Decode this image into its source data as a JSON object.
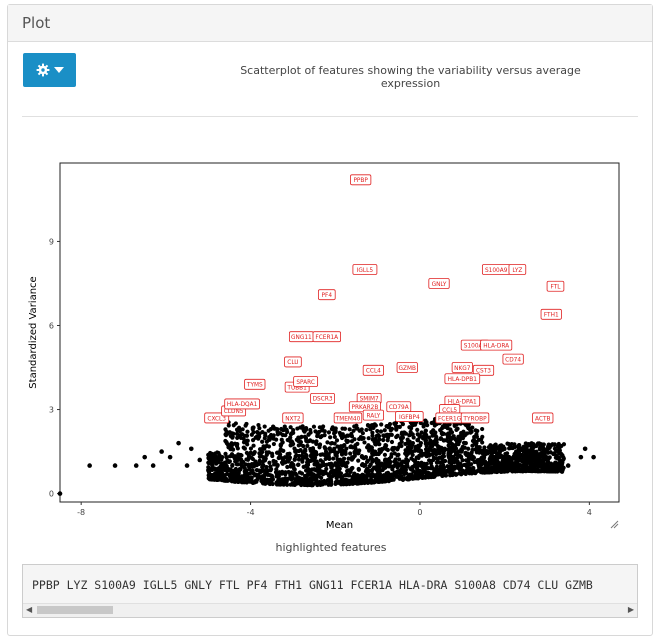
{
  "panel": {
    "title": "Plot"
  },
  "toolbar": {
    "settings_icon": "gear-icon",
    "dropdown_icon": "caret-down-icon",
    "accent": "#1a8fc6"
  },
  "caption": "Scatterplot of features showing the variability versus average expression",
  "chart_data": {
    "type": "scatter",
    "xlabel": "Mean",
    "ylabel": "Standardized Variance",
    "xlim": [
      -8.5,
      4.7
    ],
    "ylim": [
      -0.3,
      11.8
    ],
    "x_ticks": [
      "-8",
      "-4",
      "0",
      "4"
    ],
    "y_ticks": [
      "0",
      "3",
      "6",
      "9"
    ],
    "grid": false,
    "point_color": "#000000",
    "label_color": "#e02020",
    "labeled_points": [
      {
        "label": "PPBP",
        "x": -1.4,
        "y": 11.2
      },
      {
        "label": "IGLL5",
        "x": -1.3,
        "y": 8.0
      },
      {
        "label": "GNLY",
        "x": 0.45,
        "y": 7.5
      },
      {
        "label": "S100A9",
        "x": 1.8,
        "y": 8.0
      },
      {
        "label": "LYZ",
        "x": 2.3,
        "y": 8.0
      },
      {
        "label": "FTL",
        "x": 3.2,
        "y": 7.4
      },
      {
        "label": "PF4",
        "x": -2.2,
        "y": 7.1
      },
      {
        "label": "FTH1",
        "x": 3.1,
        "y": 6.4
      },
      {
        "label": "GNG11",
        "x": -2.8,
        "y": 5.6
      },
      {
        "label": "FCER1A",
        "x": -2.2,
        "y": 5.6
      },
      {
        "label": "S100A8",
        "x": 1.3,
        "y": 5.3
      },
      {
        "label": "HLA-DRA",
        "x": 1.8,
        "y": 5.3
      },
      {
        "label": "CD74",
        "x": 2.2,
        "y": 4.8
      },
      {
        "label": "CLU",
        "x": -3.0,
        "y": 4.7
      },
      {
        "label": "GZMB",
        "x": -0.3,
        "y": 4.5
      },
      {
        "label": "CCL4",
        "x": -1.1,
        "y": 4.4
      },
      {
        "label": "NKG7",
        "x": 1.0,
        "y": 4.5
      },
      {
        "label": "CST3",
        "x": 1.5,
        "y": 4.4
      },
      {
        "label": "HLA-DPB1",
        "x": 1.0,
        "y": 4.1
      },
      {
        "label": "HLA-DPA1",
        "x": 1.0,
        "y": 3.3
      },
      {
        "label": "CCL5",
        "x": 0.7,
        "y": 3.0
      },
      {
        "label": "FCER1G",
        "x": 0.7,
        "y": 2.7
      },
      {
        "label": "TYROBP",
        "x": 1.3,
        "y": 2.7
      },
      {
        "label": "ACTB",
        "x": 2.9,
        "y": 2.7
      },
      {
        "label": "TUBB1",
        "x": -2.9,
        "y": 3.8
      },
      {
        "label": "SPARC",
        "x": -2.7,
        "y": 4.0
      },
      {
        "label": "TYMS",
        "x": -3.9,
        "y": 3.9
      },
      {
        "label": "DSCR3",
        "x": -2.3,
        "y": 3.4
      },
      {
        "label": "SMIM7",
        "x": -1.2,
        "y": 3.4
      },
      {
        "label": "PRKAR2B",
        "x": -1.3,
        "y": 3.1
      },
      {
        "label": "RALY",
        "x": -1.1,
        "y": 2.8
      },
      {
        "label": "CD79A",
        "x": -0.5,
        "y": 3.1
      },
      {
        "label": "IGFBP4",
        "x": -0.25,
        "y": 2.75
      },
      {
        "label": "TMEM40",
        "x": -1.7,
        "y": 2.7
      },
      {
        "label": "CXCL3",
        "x": -4.8,
        "y": 2.7
      },
      {
        "label": "CLDN5",
        "x": -4.4,
        "y": 2.95
      },
      {
        "label": "NXT2",
        "x": -3.0,
        "y": 2.7
      },
      {
        "label": "HLA-DQA1",
        "x": -4.2,
        "y": 3.2
      }
    ]
  },
  "highlighted": {
    "title": "highlighted features",
    "genes": "PPBP LYZ S100A9 IGLL5 GNLY FTL PF4 FTH1 GNG11 FCER1A HLA-DRA S100A8 CD74 CLU GZMB"
  }
}
